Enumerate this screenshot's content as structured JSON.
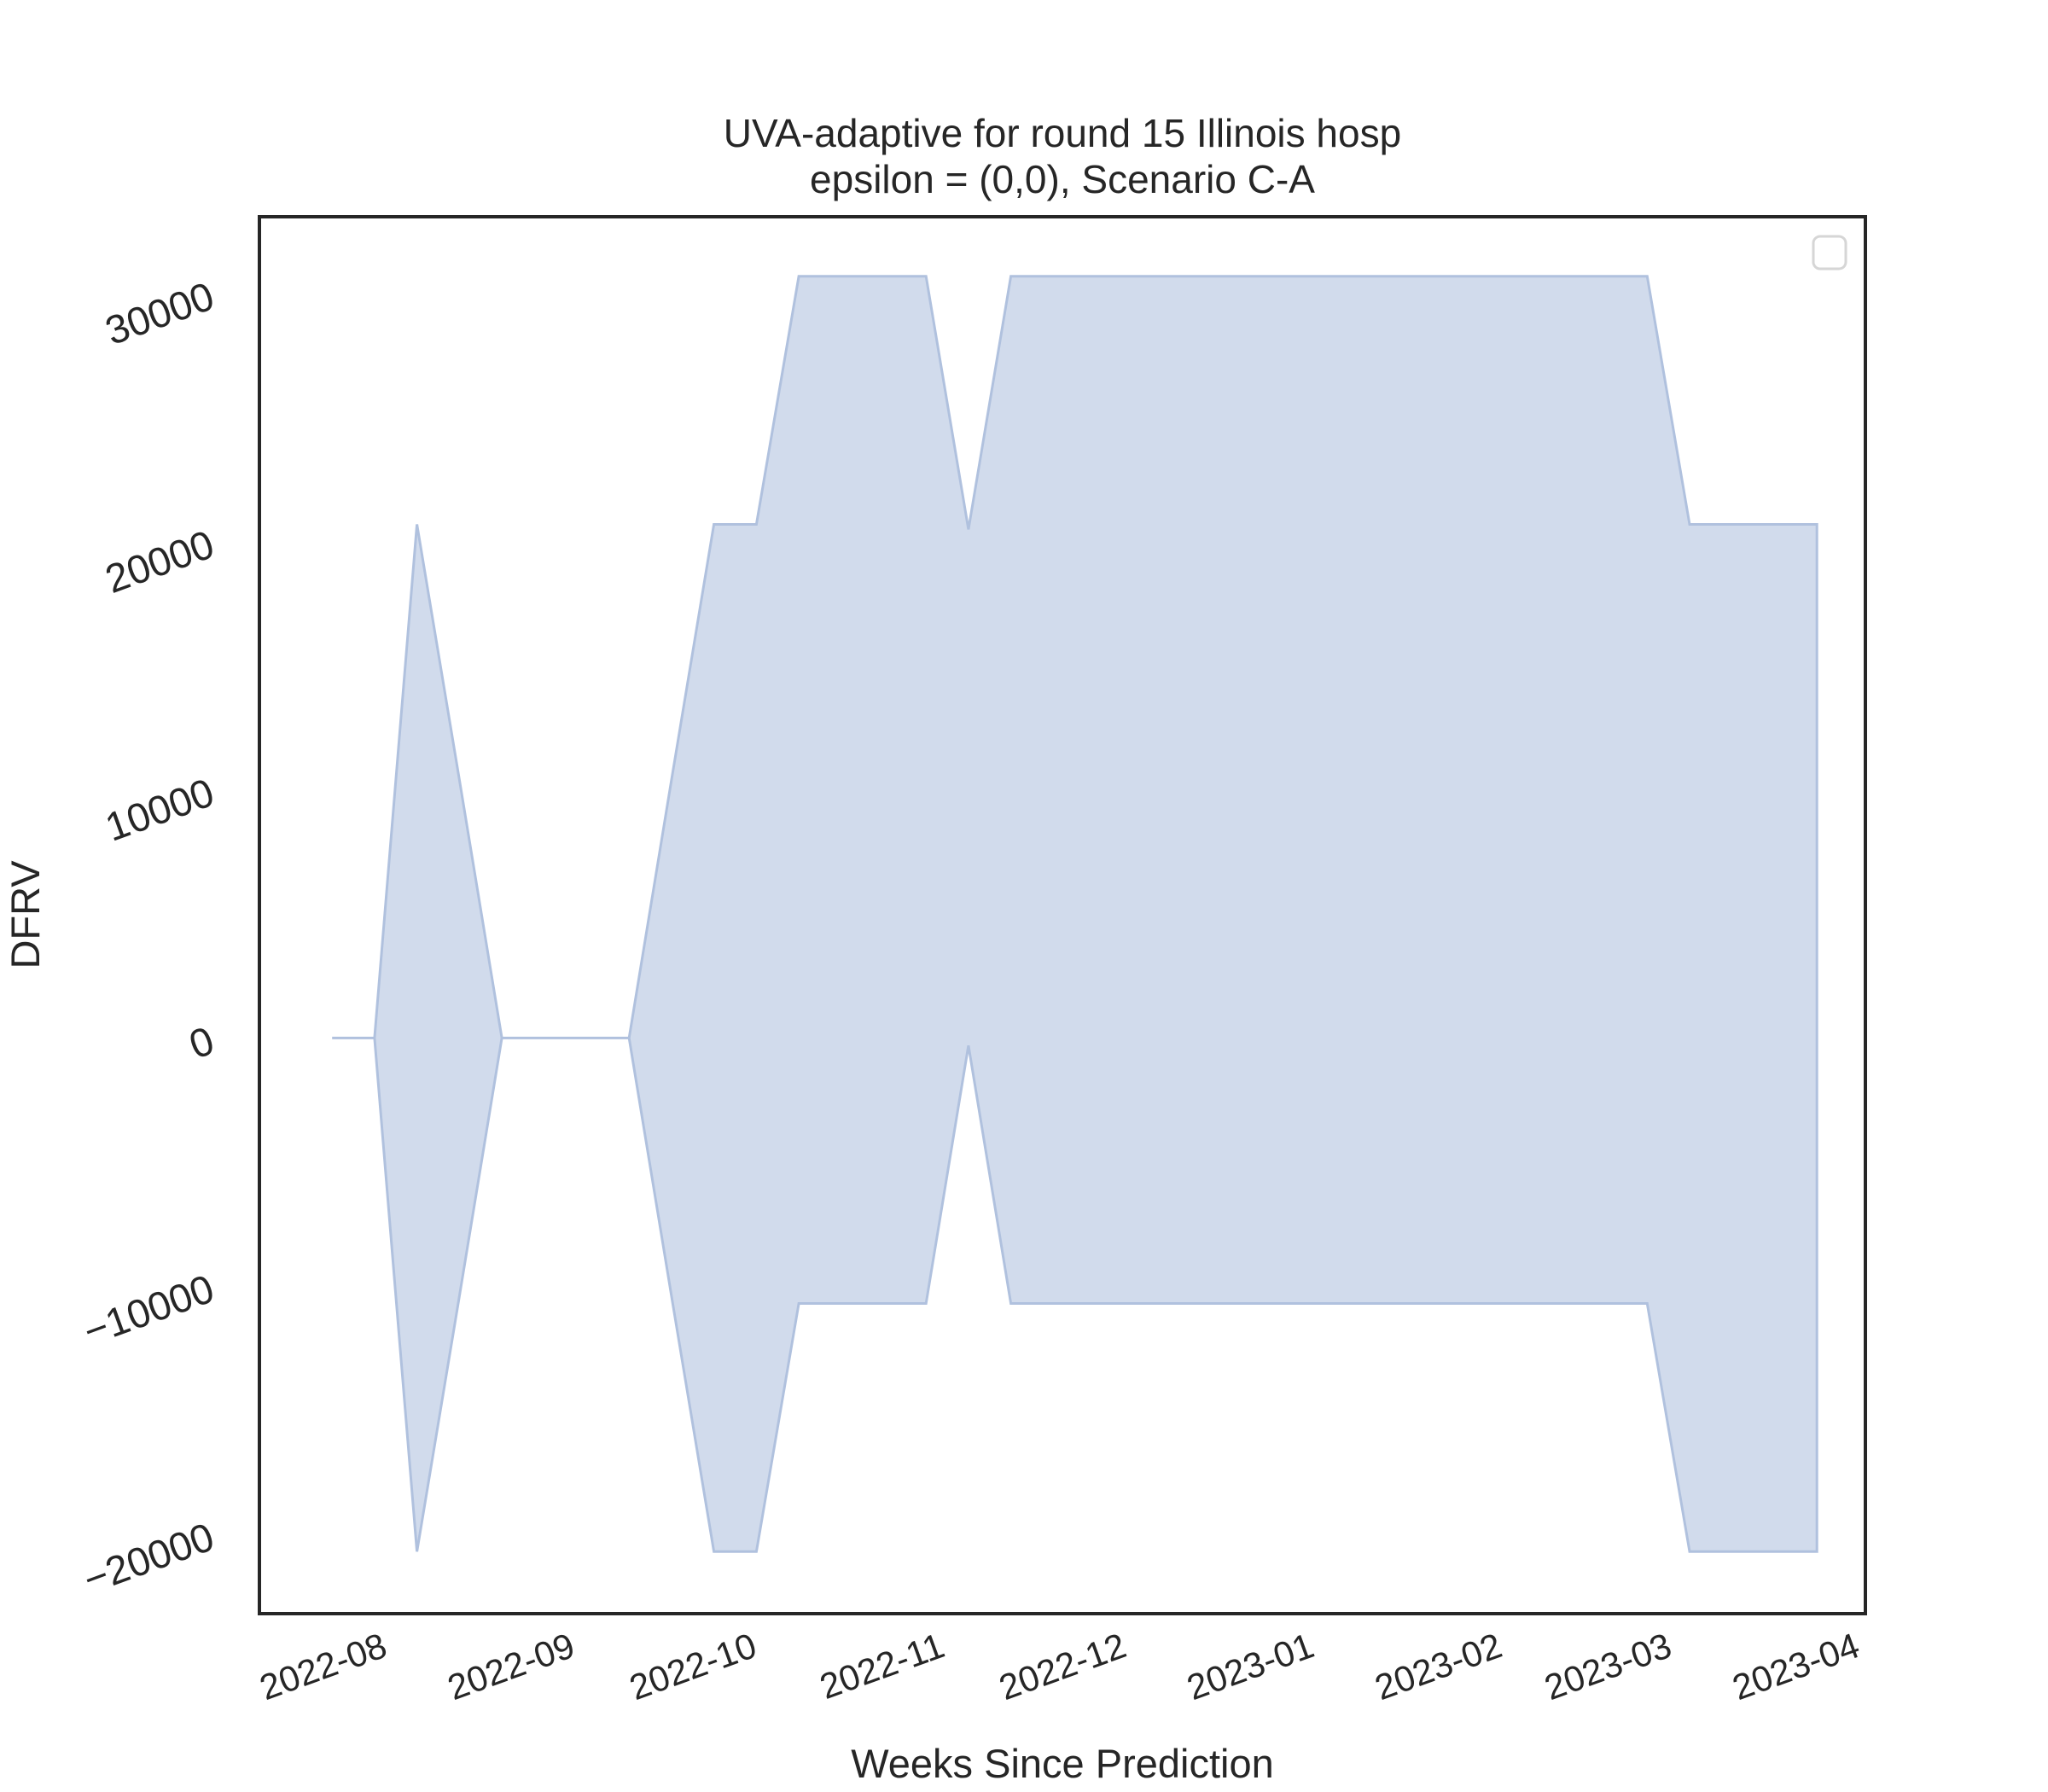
{
  "chart_data": {
    "type": "area",
    "title": "UVA-adaptive for round 15 Illinois hosp",
    "subtitle": "epsilon = (0,0), Scenario C-A",
    "xlabel": "Weeks Since Prediction",
    "ylabel": "DFRV",
    "x_tick_labels": [
      "2022-08",
      "2022-09",
      "2022-10",
      "2022-11",
      "2022-12",
      "2023-01",
      "2023-02",
      "2023-03",
      "2023-04"
    ],
    "y_tick_labels": [
      "−20000",
      "−10000",
      "0",
      "10000",
      "20000",
      "30000"
    ],
    "y_ticks": [
      -20000,
      -10000,
      0,
      10000,
      20000,
      30000
    ],
    "xlim": [
      "2022-07-12",
      "2023-04-03"
    ],
    "ylim": [
      -23200,
      33100
    ],
    "legend": {
      "placement": "top-right",
      "entries": []
    },
    "grid": false,
    "color": "#b0c1de",
    "series": [
      {
        "name": "band",
        "x": [
          "2022-07-24",
          "2022-07-31",
          "2022-08-07",
          "2022-08-14",
          "2022-08-21",
          "2022-08-28",
          "2022-09-04",
          "2022-09-11",
          "2022-09-18",
          "2022-09-25",
          "2022-10-02",
          "2022-10-09",
          "2022-10-16",
          "2022-10-23",
          "2022-10-30",
          "2022-11-06",
          "2022-11-13",
          "2022-11-20",
          "2022-11-27",
          "2022-12-04",
          "2022-12-11",
          "2022-12-18",
          "2022-12-25",
          "2023-01-01",
          "2023-01-08",
          "2023-01-15",
          "2023-01-22",
          "2023-01-29",
          "2023-02-05",
          "2023-02-12",
          "2023-02-19",
          "2023-02-26",
          "2023-03-05",
          "2023-03-12",
          "2023-03-19",
          "2023-03-26"
        ],
        "lower": [
          0,
          0,
          -20700,
          -10400,
          0,
          0,
          0,
          0,
          -10400,
          -20700,
          -20700,
          -10700,
          -10700,
          -10700,
          -10700,
          -300,
          -10700,
          -10700,
          -10700,
          -10700,
          -10700,
          -10700,
          -10700,
          -10700,
          -10700,
          -10700,
          -10700,
          -10700,
          -10700,
          -10700,
          -10700,
          -10700,
          -20700,
          -20700,
          -20700,
          -20700
        ],
        "upper": [
          0,
          0,
          20700,
          10400,
          0,
          0,
          0,
          0,
          10400,
          20700,
          20700,
          30700,
          30700,
          30700,
          30700,
          20500,
          30700,
          30700,
          30700,
          30700,
          30700,
          30700,
          30700,
          30700,
          30700,
          30700,
          30700,
          30700,
          30700,
          30700,
          30700,
          30700,
          20700,
          20700,
          20700,
          20700
        ]
      }
    ]
  }
}
